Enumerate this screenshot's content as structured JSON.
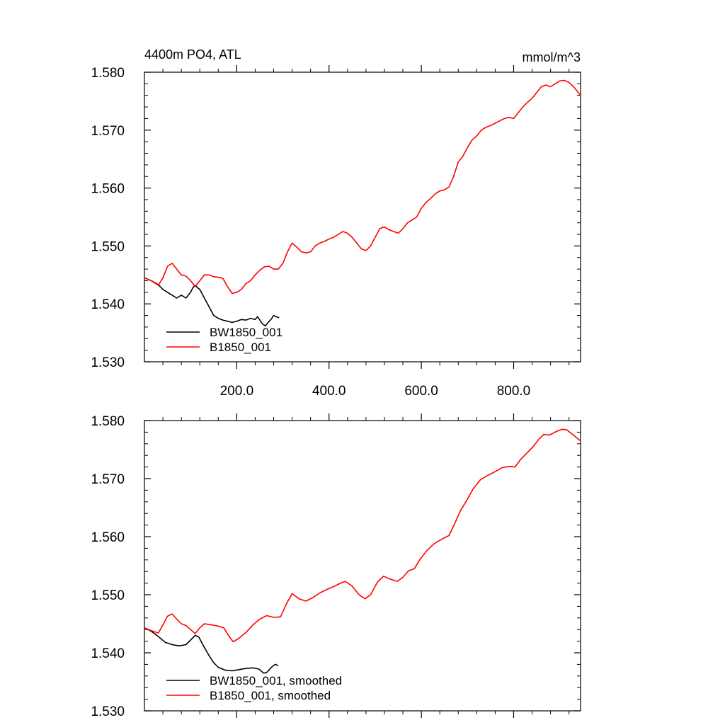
{
  "chart_data": [
    {
      "type": "line",
      "title": "4400m PO4, ATL",
      "units": "mmol/m^3",
      "xlim": [
        0,
        945
      ],
      "ylim": [
        1.53,
        1.58
      ],
      "x_ticks": [
        200,
        400,
        600,
        800
      ],
      "x_tick_labels": [
        "200.0",
        "400.0",
        "600.0",
        "800.0"
      ],
      "y_ticks": [
        1.53,
        1.54,
        1.55,
        1.56,
        1.57,
        1.58
      ],
      "y_tick_labels": [
        "1.530",
        "1.540",
        "1.550",
        "1.560",
        "1.570",
        "1.580"
      ],
      "grid": false,
      "legend_position": "bottom-left",
      "series": [
        {
          "name": "BW1850_001",
          "color": "#000000",
          "points": [
            [
              0,
              1.5445
            ],
            [
              15,
              1.544
            ],
            [
              30,
              1.5433
            ],
            [
              40,
              1.5425
            ],
            [
              50,
              1.542
            ],
            [
              60,
              1.5415
            ],
            [
              70,
              1.541
            ],
            [
              80,
              1.5415
            ],
            [
              90,
              1.541
            ],
            [
              100,
              1.542
            ],
            [
              105,
              1.5428
            ],
            [
              110,
              1.5432
            ],
            [
              115,
              1.5428
            ],
            [
              120,
              1.5425
            ],
            [
              130,
              1.541
            ],
            [
              140,
              1.5395
            ],
            [
              150,
              1.538
            ],
            [
              160,
              1.5375
            ],
            [
              170,
              1.5372
            ],
            [
              180,
              1.537
            ],
            [
              190,
              1.5368
            ],
            [
              200,
              1.537
            ],
            [
              210,
              1.5373
            ],
            [
              220,
              1.5372
            ],
            [
              230,
              1.5375
            ],
            [
              240,
              1.5373
            ],
            [
              245,
              1.5378
            ],
            [
              250,
              1.5372
            ],
            [
              255,
              1.5366
            ],
            [
              262,
              1.5362
            ],
            [
              268,
              1.5368
            ],
            [
              275,
              1.5374
            ],
            [
              280,
              1.538
            ],
            [
              285,
              1.5378
            ],
            [
              292,
              1.5376
            ]
          ]
        },
        {
          "name": "B1850_001",
          "color": "#ff0000",
          "points": [
            [
              0,
              1.5445
            ],
            [
              15,
              1.544
            ],
            [
              30,
              1.5432
            ],
            [
              40,
              1.5445
            ],
            [
              50,
              1.5465
            ],
            [
              60,
              1.547
            ],
            [
              70,
              1.546
            ],
            [
              80,
              1.545
            ],
            [
              90,
              1.5448
            ],
            [
              100,
              1.544
            ],
            [
              110,
              1.543
            ],
            [
              120,
              1.544
            ],
            [
              130,
              1.545
            ],
            [
              140,
              1.545
            ],
            [
              150,
              1.5447
            ],
            [
              160,
              1.5446
            ],
            [
              170,
              1.5444
            ],
            [
              180,
              1.543
            ],
            [
              190,
              1.5418
            ],
            [
              200,
              1.542
            ],
            [
              210,
              1.5425
            ],
            [
              220,
              1.5435
            ],
            [
              230,
              1.544
            ],
            [
              240,
              1.545
            ],
            [
              250,
              1.5458
            ],
            [
              260,
              1.5464
            ],
            [
              270,
              1.5465
            ],
            [
              280,
              1.546
            ],
            [
              290,
              1.546
            ],
            [
              300,
              1.547
            ],
            [
              310,
              1.549
            ],
            [
              320,
              1.5505
            ],
            [
              330,
              1.5498
            ],
            [
              340,
              1.549
            ],
            [
              350,
              1.5488
            ],
            [
              360,
              1.549
            ],
            [
              370,
              1.55
            ],
            [
              380,
              1.5505
            ],
            [
              390,
              1.5508
            ],
            [
              400,
              1.5512
            ],
            [
              410,
              1.5515
            ],
            [
              420,
              1.552
            ],
            [
              430,
              1.5525
            ],
            [
              440,
              1.5522
            ],
            [
              450,
              1.5515
            ],
            [
              460,
              1.5505
            ],
            [
              470,
              1.5495
            ],
            [
              480,
              1.5492
            ],
            [
              490,
              1.55
            ],
            [
              500,
              1.5515
            ],
            [
              510,
              1.553
            ],
            [
              520,
              1.5533
            ],
            [
              530,
              1.5528
            ],
            [
              540,
              1.5525
            ],
            [
              550,
              1.5522
            ],
            [
              560,
              1.553
            ],
            [
              570,
              1.554
            ],
            [
              580,
              1.5545
            ],
            [
              590,
              1.555
            ],
            [
              600,
              1.5565
            ],
            [
              610,
              1.5575
            ],
            [
              620,
              1.5582
            ],
            [
              630,
              1.559
            ],
            [
              640,
              1.5595
            ],
            [
              650,
              1.5597
            ],
            [
              660,
              1.5602
            ],
            [
              670,
              1.562
            ],
            [
              680,
              1.5645
            ],
            [
              690,
              1.5655
            ],
            [
              700,
              1.567
            ],
            [
              710,
              1.5683
            ],
            [
              720,
              1.569
            ],
            [
              730,
              1.57
            ],
            [
              740,
              1.5705
            ],
            [
              750,
              1.5708
            ],
            [
              760,
              1.5712
            ],
            [
              770,
              1.5716
            ],
            [
              780,
              1.572
            ],
            [
              790,
              1.5722
            ],
            [
              800,
              1.572
            ],
            [
              810,
              1.573
            ],
            [
              820,
              1.574
            ],
            [
              830,
              1.5748
            ],
            [
              840,
              1.5755
            ],
            [
              850,
              1.5765
            ],
            [
              860,
              1.5775
            ],
            [
              870,
              1.5778
            ],
            [
              880,
              1.5775
            ],
            [
              890,
              1.578
            ],
            [
              900,
              1.5785
            ],
            [
              910,
              1.5786
            ],
            [
              920,
              1.5782
            ],
            [
              930,
              1.5775
            ],
            [
              940,
              1.5765
            ],
            [
              945,
              1.576
            ]
          ]
        }
      ]
    },
    {
      "type": "line",
      "title": "",
      "xlim": [
        0,
        945
      ],
      "ylim": [
        1.53,
        1.58
      ],
      "x_ticks": [
        200,
        400,
        600,
        800
      ],
      "y_ticks": [
        1.53,
        1.54,
        1.55,
        1.56,
        1.57,
        1.58
      ],
      "y_tick_labels": [
        "1.530",
        "1.540",
        "1.550",
        "1.560",
        "1.570",
        "1.580"
      ],
      "grid": false,
      "legend_position": "bottom-left",
      "series": [
        {
          "name": "BW1850_001, smoothed",
          "color": "#000000",
          "points": [
            [
              0,
              1.5443
            ],
            [
              15,
              1.5437
            ],
            [
              30,
              1.5428
            ],
            [
              45,
              1.5418
            ],
            [
              60,
              1.5414
            ],
            [
              75,
              1.5412
            ],
            [
              90,
              1.5414
            ],
            [
              100,
              1.5422
            ],
            [
              110,
              1.543
            ],
            [
              118,
              1.5427
            ],
            [
              128,
              1.5412
            ],
            [
              140,
              1.5395
            ],
            [
              150,
              1.5383
            ],
            [
              160,
              1.5375
            ],
            [
              175,
              1.537
            ],
            [
              190,
              1.5369
            ],
            [
              205,
              1.5371
            ],
            [
              220,
              1.5373
            ],
            [
              235,
              1.5374
            ],
            [
              248,
              1.5372
            ],
            [
              258,
              1.5365
            ],
            [
              265,
              1.5366
            ],
            [
              275,
              1.5375
            ],
            [
              283,
              1.538
            ],
            [
              290,
              1.5378
            ]
          ]
        },
        {
          "name": "B1850_001, smoothed",
          "color": "#ff0000",
          "points": [
            [
              0,
              1.5443
            ],
            [
              15,
              1.5438
            ],
            [
              30,
              1.5434
            ],
            [
              40,
              1.5448
            ],
            [
              50,
              1.5463
            ],
            [
              60,
              1.5467
            ],
            [
              70,
              1.5458
            ],
            [
              80,
              1.545
            ],
            [
              90,
              1.5447
            ],
            [
              100,
              1.544
            ],
            [
              110,
              1.5433
            ],
            [
              120,
              1.5443
            ],
            [
              130,
              1.545
            ],
            [
              145,
              1.5448
            ],
            [
              160,
              1.5446
            ],
            [
              172,
              1.5443
            ],
            [
              182,
              1.543
            ],
            [
              192,
              1.5419
            ],
            [
              205,
              1.5425
            ],
            [
              220,
              1.5435
            ],
            [
              235,
              1.5448
            ],
            [
              250,
              1.5458
            ],
            [
              265,
              1.5464
            ],
            [
              280,
              1.5461
            ],
            [
              295,
              1.5462
            ],
            [
              308,
              1.5485
            ],
            [
              320,
              1.5502
            ],
            [
              335,
              1.5493
            ],
            [
              350,
              1.5489
            ],
            [
              365,
              1.5495
            ],
            [
              380,
              1.5503
            ],
            [
              395,
              1.5509
            ],
            [
              410,
              1.5514
            ],
            [
              425,
              1.552
            ],
            [
              435,
              1.5523
            ],
            [
              450,
              1.5515
            ],
            [
              465,
              1.55
            ],
            [
              478,
              1.5493
            ],
            [
              490,
              1.55
            ],
            [
              505,
              1.5522
            ],
            [
              518,
              1.5532
            ],
            [
              532,
              1.5527
            ],
            [
              548,
              1.5523
            ],
            [
              560,
              1.553
            ],
            [
              572,
              1.5541
            ],
            [
              585,
              1.5545
            ],
            [
              598,
              1.5562
            ],
            [
              612,
              1.5576
            ],
            [
              628,
              1.5588
            ],
            [
              645,
              1.5596
            ],
            [
              660,
              1.5602
            ],
            [
              672,
              1.5622
            ],
            [
              685,
              1.5645
            ],
            [
              698,
              1.5662
            ],
            [
              712,
              1.5682
            ],
            [
              728,
              1.5698
            ],
            [
              745,
              1.5706
            ],
            [
              760,
              1.5712
            ],
            [
              775,
              1.5719
            ],
            [
              790,
              1.5721
            ],
            [
              803,
              1.572
            ],
            [
              815,
              1.5733
            ],
            [
              830,
              1.5745
            ],
            [
              842,
              1.5755
            ],
            [
              855,
              1.5768
            ],
            [
              865,
              1.5776
            ],
            [
              878,
              1.5775
            ],
            [
              892,
              1.5781
            ],
            [
              905,
              1.5785
            ],
            [
              915,
              1.5784
            ],
            [
              928,
              1.5776
            ],
            [
              945,
              1.5765
            ]
          ]
        }
      ]
    }
  ]
}
